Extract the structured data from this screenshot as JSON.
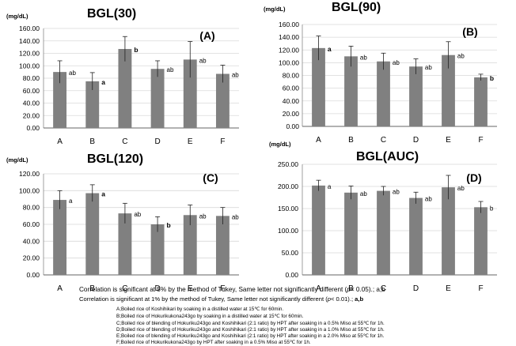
{
  "chart_data": [
    {
      "type": "bar",
      "title": "BGL(30)",
      "unit": "(mg/dL)",
      "panel": "(A)",
      "categories": [
        "A",
        "B",
        "C",
        "D",
        "E",
        "F"
      ],
      "values": [
        90,
        75,
        127,
        95,
        110,
        87
      ],
      "errors": [
        18,
        14,
        20,
        13,
        29,
        14
      ],
      "letters": [
        "ab",
        "a",
        "b",
        "ab",
        "ab",
        "ab"
      ],
      "bold_letters": [
        false,
        true,
        true,
        false,
        false,
        false
      ],
      "ylim": [
        0,
        160
      ],
      "yticks": [
        "0.00",
        "20.00",
        "40.00",
        "60.00",
        "80.00",
        "100.00",
        "120.00",
        "140.00",
        "160.00"
      ],
      "bar_color": "#808080"
    },
    {
      "type": "bar",
      "title": "BGL(90)",
      "unit": "(mg/dL)",
      "panel": "(B)",
      "categories": [
        "A",
        "B",
        "C",
        "D",
        "E",
        "F"
      ],
      "values": [
        123,
        110,
        102,
        94,
        112,
        77
      ],
      "errors": [
        19,
        16,
        13,
        12,
        21,
        5
      ],
      "letters": [
        "a",
        "ab",
        "ab",
        "ab",
        "ab",
        "b"
      ],
      "bold_letters": [
        true,
        false,
        false,
        false,
        false,
        true
      ],
      "ylim": [
        0,
        160
      ],
      "yticks": [
        "0.00",
        "20.00",
        "40.00",
        "60.00",
        "80.00",
        "100.00",
        "120.00",
        "140.00",
        "160.00"
      ],
      "bar_color": "#808080"
    },
    {
      "type": "bar",
      "title": "BGL(120)",
      "unit": "(mg/dL)",
      "panel": "(C)",
      "categories": [
        "A",
        "B",
        "C",
        "D",
        "E",
        "F"
      ],
      "values": [
        89,
        97,
        73,
        60,
        71,
        70
      ],
      "errors": [
        11,
        10,
        12,
        9,
        12,
        10
      ],
      "letters": [
        "a",
        "a",
        "ab",
        "b",
        "ab",
        "ab"
      ],
      "bold_letters": [
        false,
        true,
        false,
        true,
        false,
        false
      ],
      "ylim": [
        0,
        120
      ],
      "yticks": [
        "0.00",
        "20.00",
        "40.00",
        "60.00",
        "80.00",
        "100.00",
        "120.00"
      ],
      "bar_color": "#808080"
    },
    {
      "type": "bar",
      "title": "BGL(AUC)",
      "unit": "(mg/dL)",
      "panel": "(D)",
      "categories": [
        "A",
        "B",
        "C",
        "D",
        "E",
        "F"
      ],
      "values": [
        202,
        186,
        190,
        174,
        198,
        153
      ],
      "errors": [
        12,
        15,
        10,
        13,
        27,
        13
      ],
      "letters": [
        "a",
        "ab",
        "ab",
        "ab",
        "ab",
        "b"
      ],
      "bold_letters": [
        false,
        false,
        false,
        false,
        false,
        false
      ],
      "ylim": [
        0,
        250
      ],
      "yticks": [
        "0.00",
        "50.00",
        "100.00",
        "150.00",
        "200.00",
        "250.00"
      ],
      "bar_color": "#808080"
    }
  ],
  "notes": {
    "corr1_pre": "Correlation is significant  at  5%  by the method of Tukey, Same letter not significantly different  (",
    "corr1_p": "p",
    "corr1_post": "< 0.05).; a,b",
    "corr2_pre": "Correlation is significant  at  1%  by the method of Tukey, Same letter not significantly different  (",
    "corr2_p": "p",
    "corr2_post": "< 0.01).; ",
    "corr2_bold": "a,b",
    "legend": [
      "A;Boiled rice of Koshihikari by soaking in a distilled water at 15℃ for 60min.",
      "B;Boiled rice of Hokurikukona243go by soaking in a distilled water at 15℃ for 60min.",
      "C;Boiled rice of blending of Hokuriku243go and Koshihikari (2:1 ratio) by HPT after soaking in a 0.5% Miso at 55℃ for 1h.",
      "D;Boiled rice of blending of Hokuriku243go and Koshihikari (2:1 ratio) by HPT after soaking in a 1.0% Miso at 55℃ for 1h.",
      "E;Boiled rice of blending of Hokuriku243go and Koshihikari (2:1 ratio) by HPT after soaking in a 2.0% Miso at 55℃ for 1h.",
      "F;Boiled rice of Hokurikukona243go by HPT after soaking in a 0.5% Miso at 55℃ for 1h."
    ]
  }
}
